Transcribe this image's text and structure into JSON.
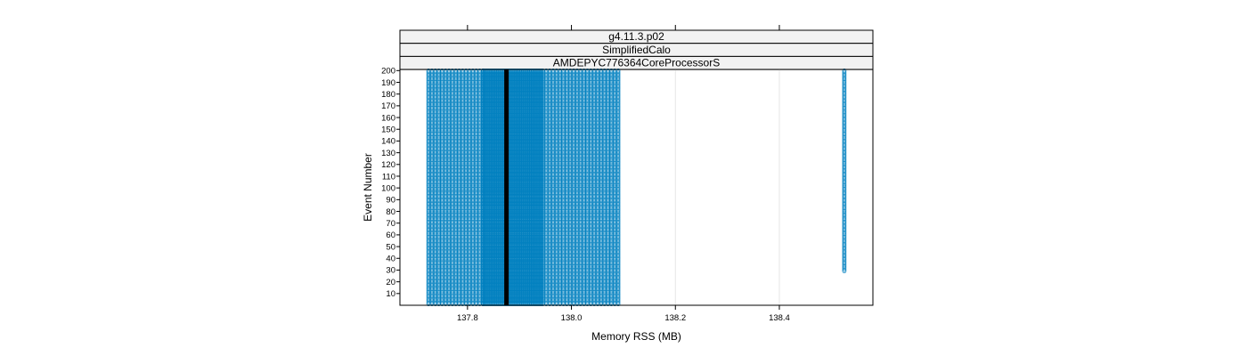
{
  "chart_data": {
    "type": "scatter",
    "strips": [
      "g4.11.3.p02",
      "SimplifiedCalo",
      "AMDEPYC776364CoreProcessorS"
    ],
    "xlabel": "Memory RSS (MB)",
    "ylabel": "Event Number",
    "xlim": [
      137.67,
      138.58
    ],
    "ylim": [
      0,
      201
    ],
    "x_ticks": [
      137.8,
      138.0,
      138.2,
      138.4
    ],
    "x_tick_labels": [
      "137.8",
      "138.0",
      "138.2",
      "138.4"
    ],
    "y_ticks": [
      10,
      20,
      30,
      40,
      50,
      60,
      70,
      80,
      90,
      100,
      110,
      120,
      130,
      140,
      150,
      160,
      170,
      180,
      190,
      200
    ],
    "y_tick_labels": [
      "10",
      "20",
      "30",
      "40",
      "50",
      "60",
      "70",
      "80",
      "90",
      "100",
      "110",
      "120",
      "130",
      "140",
      "150",
      "160",
      "170",
      "180",
      "190",
      "200"
    ],
    "grid_x": true,
    "point_color": "#0080c0",
    "median_line_color": "#000000",
    "median_x": 137.875,
    "point_columns": [
      {
        "x_from": 137.725,
        "x_to": 137.83,
        "step": 0.00656,
        "y_from": 1,
        "y_to": 200,
        "density": "sparse"
      },
      {
        "x_from": 137.83,
        "x_to": 137.945,
        "step": 0.0032,
        "y_from": 1,
        "y_to": 200,
        "density": "dense"
      },
      {
        "x_from": 137.945,
        "x_to": 138.09,
        "step": 0.00659,
        "y_from": 1,
        "y_to": 200,
        "density": "sparse"
      },
      {
        "x_from": 138.525,
        "x_to": 138.525,
        "step": 1,
        "y_from": 29,
        "y_to": 200,
        "density": "dense"
      }
    ]
  }
}
